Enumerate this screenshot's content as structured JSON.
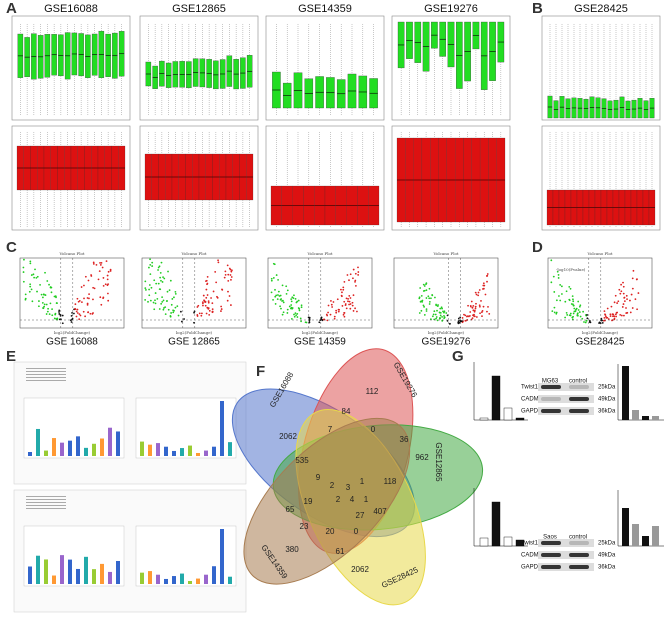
{
  "panel_labels": [
    "A",
    "B",
    "C",
    "D",
    "E",
    "F",
    "G"
  ],
  "boxplots": {
    "titles": [
      "GSE16088",
      "GSE12865",
      "GSE14359",
      "GSE19276",
      "GSE28425"
    ]
  },
  "volcano": {
    "title": "Volcano Plot",
    "y_label": "-log10(Pvalue)",
    "x_label": "log2(FoldChange)",
    "datasets": [
      "GSE 16088",
      "GSE 12865",
      "GSE 14359",
      "GSE19276",
      "GSE28425"
    ]
  },
  "venn": {
    "sets": [
      "GSE16088",
      "GSE19276",
      "GSE12865",
      "GSE28425",
      "GSE14359"
    ],
    "counts": [
      112,
      2062,
      535,
      84,
      7,
      0,
      36,
      962,
      9,
      2,
      3,
      1,
      118,
      65,
      19,
      2,
      4,
      1,
      407,
      23,
      20,
      0,
      27,
      380,
      61,
      2062
    ]
  },
  "western": {
    "blots": [
      {
        "lanes": [
          "MG63",
          "control"
        ]
      },
      {
        "lanes": [
          "Saos",
          "control"
        ]
      }
    ],
    "proteins": [
      "Twist1",
      "CADM1",
      "GAPDH"
    ],
    "sizes": [
      "25kDa",
      "49kDa",
      "36kDa"
    ]
  }
}
